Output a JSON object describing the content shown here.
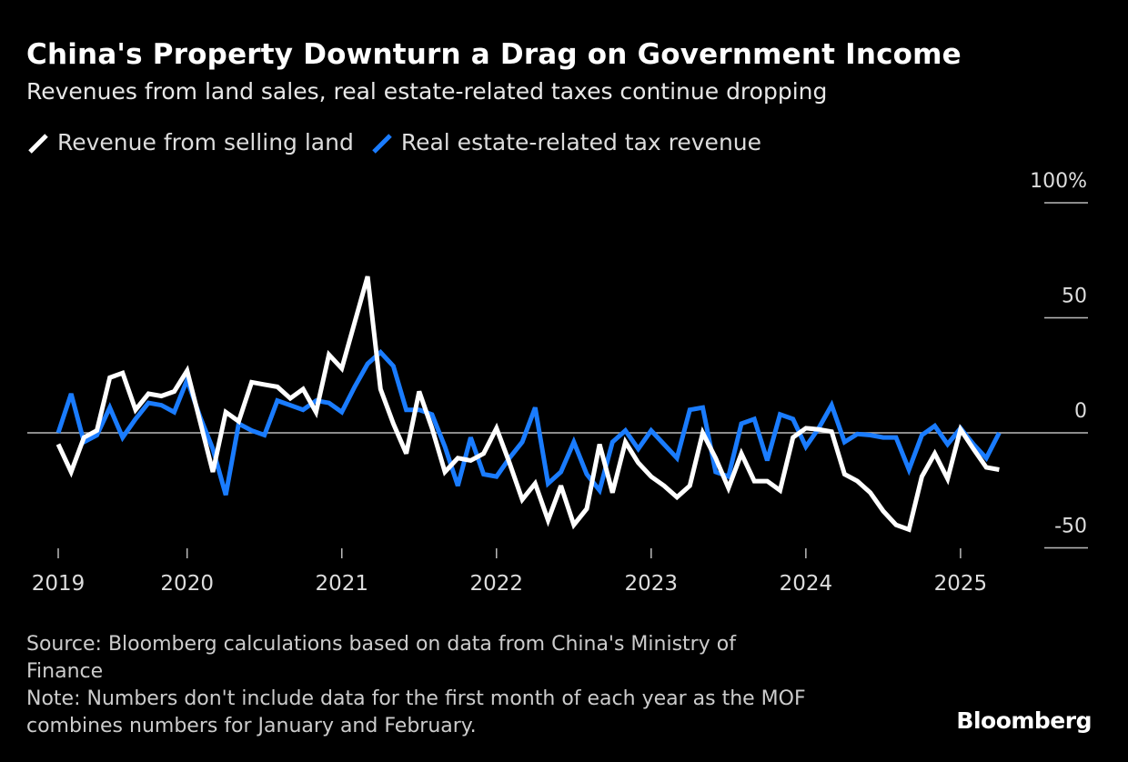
{
  "header": {
    "title": "China's Property Downturn a Drag on Government Income",
    "subtitle": "Revenues from land sales, real estate-related taxes continue dropping"
  },
  "footer": {
    "source": "Source: Bloomberg calculations based on data from China's Ministry of Finance",
    "note": "Note: Numbers don't include data for the first month of each year as the MOF combines numbers for January and February.",
    "logo": "Bloomberg"
  },
  "chart_data": {
    "type": "line",
    "title": "China's Property Downturn a Drag on Government Income",
    "subtitle": "Revenues from land sales, real estate-related taxes continue dropping",
    "xlabel": "",
    "ylabel": "",
    "ylim": [
      -60,
      100
    ],
    "y_ticks": [
      {
        "value": 100,
        "label": "100%"
      },
      {
        "value": 50,
        "label": "50"
      },
      {
        "value": 0,
        "label": "0"
      },
      {
        "value": -50,
        "label": "-50"
      }
    ],
    "x_ticks": [
      {
        "label": "2019",
        "at": "2019-03"
      },
      {
        "label": "2020",
        "at": "2020-01"
      },
      {
        "label": "2021",
        "at": "2021-01"
      },
      {
        "label": "2022",
        "at": "2022-01"
      },
      {
        "label": "2023",
        "at": "2023-01"
      },
      {
        "label": "2024",
        "at": "2024-01"
      },
      {
        "label": "2025",
        "at": "2025-01"
      }
    ],
    "grid": false,
    "zero_line": true,
    "legend_position": "top-left",
    "x": [
      "2019-03",
      "2019-04",
      "2019-05",
      "2019-06",
      "2019-07",
      "2019-08",
      "2019-09",
      "2019-10",
      "2019-11",
      "2019-12",
      "2020-01",
      "2020-02",
      "2020-03",
      "2020-04",
      "2020-05",
      "2020-06",
      "2020-07",
      "2020-08",
      "2020-09",
      "2020-10",
      "2020-11",
      "2020-12",
      "2021-01",
      "2021-02",
      "2021-03",
      "2021-04",
      "2021-05",
      "2021-06",
      "2021-07",
      "2021-08",
      "2021-09",
      "2021-10",
      "2021-11",
      "2021-12",
      "2022-01",
      "2022-02",
      "2022-03",
      "2022-04",
      "2022-05",
      "2022-06",
      "2022-07",
      "2022-08",
      "2022-09",
      "2022-10",
      "2022-11",
      "2022-12",
      "2023-01",
      "2023-02",
      "2023-03",
      "2023-04",
      "2023-05",
      "2023-06",
      "2023-07",
      "2023-08",
      "2023-09",
      "2023-10",
      "2023-11",
      "2023-12",
      "2024-01",
      "2024-02",
      "2024-03",
      "2024-04",
      "2024-05",
      "2024-06",
      "2024-07",
      "2024-08",
      "2024-09",
      "2024-10",
      "2024-11",
      "2024-12",
      "2025-01",
      "2025-02",
      "2025-03",
      "2025-04"
    ],
    "series": [
      {
        "name": "Revenue from selling land",
        "color": "#ffffff",
        "values": [
          -5,
          -17,
          -2,
          1,
          24,
          26,
          10,
          17,
          16,
          18,
          27,
          5,
          -17,
          9,
          5,
          22,
          21,
          20,
          15,
          19,
          9,
          34,
          28,
          48,
          68,
          19,
          4,
          -9,
          18,
          2,
          -17,
          -11,
          -12,
          -9,
          2,
          -13,
          -29,
          -22,
          -38,
          -23,
          -40,
          -33,
          -5,
          -26,
          -4,
          -13,
          -19,
          -23,
          -28,
          -23,
          0,
          -11,
          -24,
          -9,
          -21,
          -21,
          -25,
          -2,
          2,
          1.5,
          0.5,
          -18,
          -21,
          -26,
          -34,
          -40,
          -42,
          -19,
          -9,
          -20,
          1.5,
          -7,
          -15,
          -16
        ]
      },
      {
        "name": "Real estate-related tax revenue",
        "color": "#1a7cff",
        "values": [
          0,
          17,
          -4,
          -1,
          11,
          -2,
          6,
          13,
          12,
          9,
          23,
          7,
          -7,
          -27,
          4,
          1,
          -1,
          14,
          12,
          10,
          14,
          13,
          9,
          20,
          30,
          35,
          29,
          10,
          10,
          8,
          -6,
          -23,
          -2,
          -18,
          -19,
          -11,
          -4,
          11,
          -22,
          -17,
          -4,
          -18,
          -25,
          -4,
          1,
          -7,
          1,
          -5,
          -11,
          10,
          11,
          -17,
          -19,
          4,
          6,
          -12,
          8,
          6,
          -6,
          2,
          12,
          -4,
          -0.5,
          -1,
          -2,
          -2,
          -16,
          -1,
          3,
          -5,
          2,
          -5,
          -11,
          0
        ]
      }
    ]
  }
}
